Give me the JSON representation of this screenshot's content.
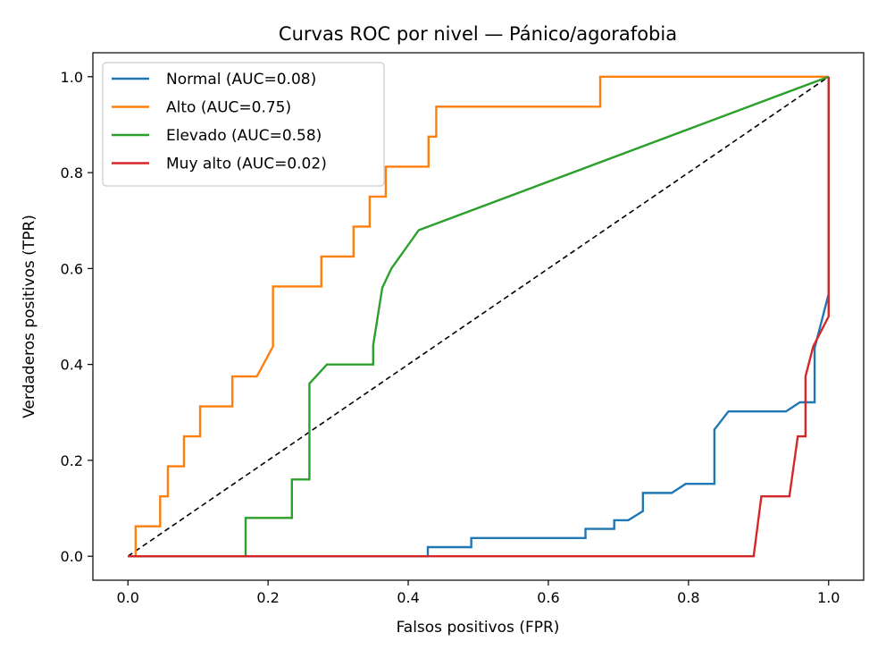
{
  "chart_data": {
    "type": "line",
    "title": "Curvas ROC por nivel — Pánico/agorafobia",
    "xlabel": "Falsos positivos (FPR)",
    "ylabel": "Verdaderos positivos (TPR)",
    "xlim": [
      -0.05,
      1.05
    ],
    "ylim": [
      -0.05,
      1.05
    ],
    "xticks": [
      0.0,
      0.2,
      0.4,
      0.6,
      0.8,
      1.0
    ],
    "yticks": [
      0.0,
      0.2,
      0.4,
      0.6,
      0.8,
      1.0
    ],
    "xtick_labels": [
      "0.0",
      "0.2",
      "0.4",
      "0.6",
      "0.8",
      "1.0"
    ],
    "ytick_labels": [
      "0.0",
      "0.2",
      "0.4",
      "0.6",
      "0.8",
      "1.0"
    ],
    "grid": false,
    "legend_position": "top-left",
    "diagonal": {
      "style": "dashed",
      "color": "#000000",
      "from": [
        0,
        0
      ],
      "to": [
        1,
        1
      ]
    },
    "series": [
      {
        "name": "Normal (AUC=0.08)",
        "color": "#1f77b4",
        "points": [
          [
            0,
            0
          ],
          [
            0.428,
            0
          ],
          [
            0.428,
            0.019
          ],
          [
            0.49,
            0.019
          ],
          [
            0.49,
            0.038
          ],
          [
            0.653,
            0.038
          ],
          [
            0.653,
            0.057
          ],
          [
            0.694,
            0.057
          ],
          [
            0.694,
            0.075
          ],
          [
            0.714,
            0.075
          ],
          [
            0.735,
            0.094
          ],
          [
            0.735,
            0.132
          ],
          [
            0.776,
            0.132
          ],
          [
            0.796,
            0.151
          ],
          [
            0.837,
            0.151
          ],
          [
            0.837,
            0.264
          ],
          [
            0.857,
            0.302
          ],
          [
            0.939,
            0.302
          ],
          [
            0.959,
            0.321
          ],
          [
            0.98,
            0.321
          ],
          [
            0.98,
            0.434
          ],
          [
            1.0,
            0.547
          ],
          [
            1.0,
            1.0
          ]
        ]
      },
      {
        "name": "Alto (AUC=0.75)",
        "color": "#ff7f0e",
        "points": [
          [
            0,
            0
          ],
          [
            0.011,
            0
          ],
          [
            0.011,
            0.0625
          ],
          [
            0.046,
            0.0625
          ],
          [
            0.046,
            0.125
          ],
          [
            0.057,
            0.125
          ],
          [
            0.057,
            0.1875
          ],
          [
            0.08,
            0.1875
          ],
          [
            0.08,
            0.25
          ],
          [
            0.103,
            0.25
          ],
          [
            0.103,
            0.3125
          ],
          [
            0.149,
            0.3125
          ],
          [
            0.149,
            0.375
          ],
          [
            0.184,
            0.375
          ],
          [
            0.207,
            0.4375
          ],
          [
            0.207,
            0.5625
          ],
          [
            0.276,
            0.5625
          ],
          [
            0.276,
            0.625
          ],
          [
            0.322,
            0.625
          ],
          [
            0.322,
            0.6875
          ],
          [
            0.345,
            0.6875
          ],
          [
            0.345,
            0.75
          ],
          [
            0.368,
            0.75
          ],
          [
            0.368,
            0.8125
          ],
          [
            0.429,
            0.8125
          ],
          [
            0.429,
            0.875
          ],
          [
            0.44,
            0.875
          ],
          [
            0.44,
            0.9375
          ],
          [
            0.674,
            0.9375
          ],
          [
            0.674,
            1.0
          ],
          [
            1.0,
            1.0
          ]
        ]
      },
      {
        "name": "Elevado (AUC=0.58)",
        "color": "#2ca02c",
        "points": [
          [
            0,
            0
          ],
          [
            0.168,
            0
          ],
          [
            0.168,
            0.08
          ],
          [
            0.234,
            0.08
          ],
          [
            0.234,
            0.16
          ],
          [
            0.259,
            0.16
          ],
          [
            0.259,
            0.36
          ],
          [
            0.284,
            0.4
          ],
          [
            0.35,
            0.4
          ],
          [
            0.35,
            0.44
          ],
          [
            0.363,
            0.56
          ],
          [
            0.376,
            0.6
          ],
          [
            0.415,
            0.68
          ],
          [
            1.0,
            1.0
          ]
        ]
      },
      {
        "name": "Muy alto (AUC=0.02)",
        "color": "#d62728",
        "points": [
          [
            0,
            0
          ],
          [
            0.893,
            0
          ],
          [
            0.904,
            0.125
          ],
          [
            0.944,
            0.125
          ],
          [
            0.956,
            0.25
          ],
          [
            0.967,
            0.25
          ],
          [
            0.967,
            0.375
          ],
          [
            0.978,
            0.4375
          ],
          [
            1.0,
            0.5
          ],
          [
            1.0,
            1.0
          ]
        ]
      }
    ]
  }
}
